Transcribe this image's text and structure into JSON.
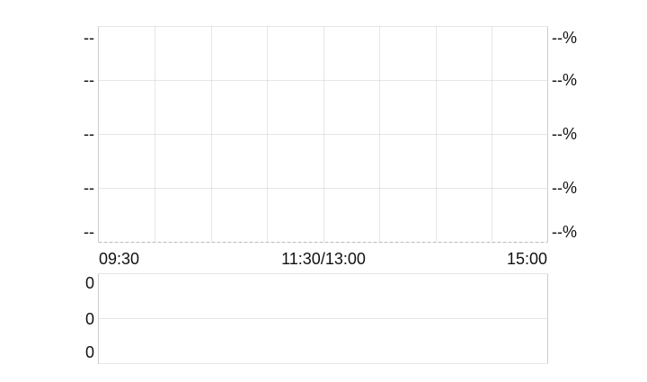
{
  "chart_data": [
    {
      "type": "line",
      "title": "",
      "x_tick_labels": [
        "09:30",
        "11:30/13:00",
        "15:00"
      ],
      "y_left_labels": [
        "--",
        "--",
        "--",
        "--",
        "--"
      ],
      "y_right_labels": [
        "--%",
        "--%",
        "--%",
        "--%",
        "--%"
      ],
      "series": [],
      "grid": true
    },
    {
      "type": "bar",
      "title": "",
      "y_left_labels": [
        "0",
        "0",
        "0"
      ],
      "series": [],
      "grid": true
    }
  ],
  "colors": {
    "grid": "#cccccc",
    "border": "#cccccc",
    "text": "#111111"
  }
}
